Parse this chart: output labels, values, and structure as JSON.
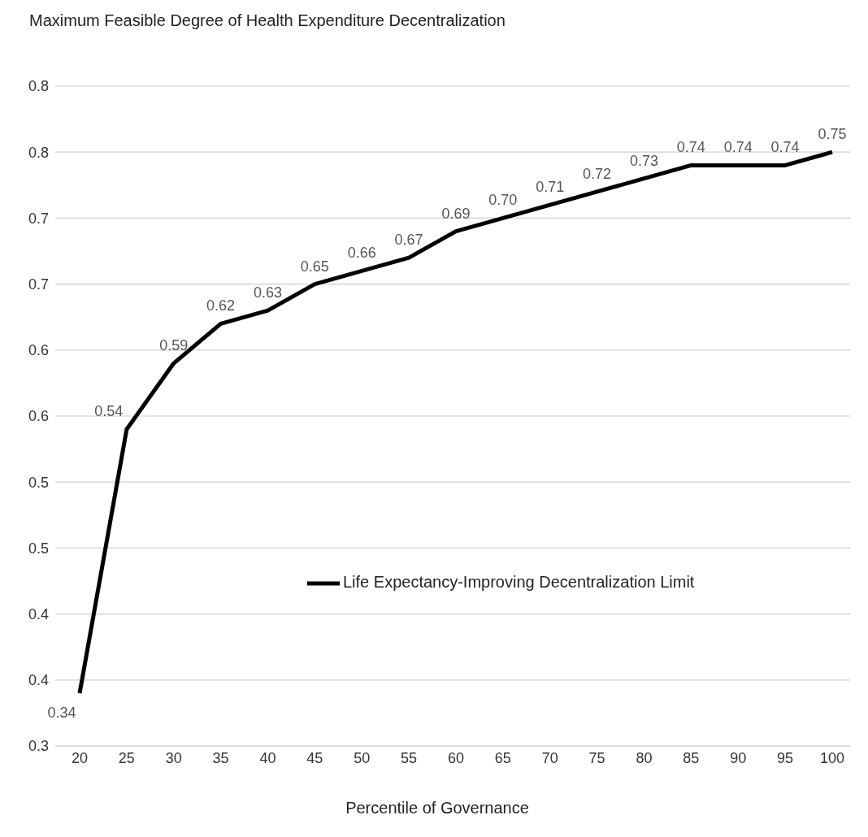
{
  "chart_data": {
    "type": "line",
    "title": "Maximum Feasible Degree of Health Expenditure Decentralization",
    "xlabel": "Percentile of Governance",
    "categories": [
      "20",
      "25",
      "30",
      "35",
      "40",
      "45",
      "50",
      "55",
      "60",
      "65",
      "70",
      "75",
      "80",
      "85",
      "90",
      "95",
      "100"
    ],
    "series": [
      {
        "name": "Life Expectancy-Improving Decentralization Limit",
        "color": "#000000",
        "values": [
          0.34,
          0.54,
          0.59,
          0.62,
          0.63,
          0.65,
          0.66,
          0.67,
          0.69,
          0.7,
          0.71,
          0.72,
          0.73,
          0.74,
          0.74,
          0.74,
          0.75
        ],
        "value_labels": [
          "0.34",
          "0.54",
          "0.59",
          "0.62",
          "0.63",
          "0.65",
          "0.66",
          "0.67",
          "0.69",
          "0.70",
          "0.71",
          "0.72",
          "0.73",
          "0.74",
          "0.74",
          "0.74",
          "0.75"
        ]
      }
    ],
    "ylim": [
      0.3,
      0.8
    ],
    "yticks": [
      {
        "value": 0.3,
        "label": "0.3"
      },
      {
        "value": 0.35,
        "label": "0.4"
      },
      {
        "value": 0.4,
        "label": "0.4"
      },
      {
        "value": 0.45,
        "label": "0.5"
      },
      {
        "value": 0.5,
        "label": "0.5"
      },
      {
        "value": 0.55,
        "label": "0.6"
      },
      {
        "value": 0.6,
        "label": "0.6"
      },
      {
        "value": 0.65,
        "label": "0.7"
      },
      {
        "value": 0.7,
        "label": "0.7"
      },
      {
        "value": 0.75,
        "label": "0.8"
      },
      {
        "value": 0.8,
        "label": "0.8"
      }
    ],
    "grid": "y",
    "legend": "bottom right",
    "marker": "none",
    "line_style": "solid"
  }
}
